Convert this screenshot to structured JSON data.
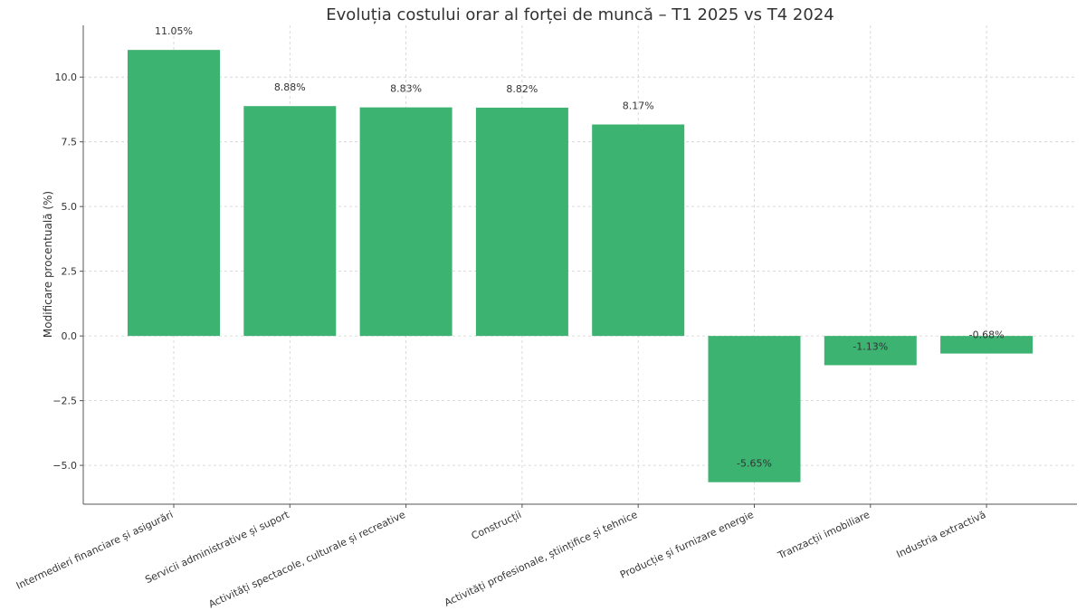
{
  "chart_data": {
    "type": "bar",
    "title": "Evoluția costului orar al forței de muncă – T1 2025 vs T4 2024",
    "xlabel": "",
    "ylabel": "Modificare procentuală (%)",
    "categories": [
      "Intermedieri financiare și asigurări",
      "Servicii administrative și suport",
      "Activități spectacole, culturale și recreative",
      "Construcții",
      "Activități profesionale, științifice și tehnice",
      "Producție și furnizare energie",
      "Tranzacții imobiliare",
      "Industria extractivă"
    ],
    "values": [
      11.05,
      8.88,
      8.83,
      8.82,
      8.17,
      -5.65,
      -1.13,
      -0.68
    ],
    "data_labels": [
      "11.05%",
      "8.88%",
      "8.83%",
      "8.82%",
      "8.17%",
      "-5.65%",
      "-1.13%",
      "-0.68%"
    ],
    "ylim": [
      -6.5,
      12
    ],
    "yticks": [
      -5.0,
      -2.5,
      0.0,
      2.5,
      5.0,
      7.5,
      10.0
    ],
    "ytick_labels": [
      "−5.0",
      "−2.5",
      "0.0",
      "2.5",
      "5.0",
      "7.5",
      "10.0"
    ],
    "grid": true,
    "bar_color": "#3cb371"
  }
}
